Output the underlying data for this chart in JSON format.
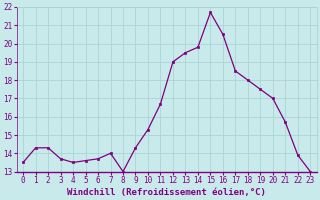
{
  "x": [
    0,
    1,
    2,
    3,
    4,
    5,
    6,
    7,
    8,
    9,
    10,
    11,
    12,
    13,
    14,
    15,
    16,
    17,
    18,
    19,
    20,
    21,
    22,
    23
  ],
  "y": [
    13.5,
    14.3,
    14.3,
    13.7,
    13.5,
    13.6,
    13.7,
    14.0,
    13.0,
    14.3,
    15.3,
    16.7,
    19.0,
    19.5,
    19.8,
    21.7,
    20.5,
    18.5,
    18.0,
    17.5,
    17.0,
    15.7,
    13.9,
    13.0
  ],
  "line_color": "#800080",
  "marker_color": "#800080",
  "bg_color": "#c8eaea",
  "grid_color": "#aad4d4",
  "ylim": [
    13,
    22
  ],
  "xlim": [
    -0.5,
    23.5
  ],
  "yticks": [
    13,
    14,
    15,
    16,
    17,
    18,
    19,
    20,
    21,
    22
  ],
  "xticks": [
    0,
    1,
    2,
    3,
    4,
    5,
    6,
    7,
    8,
    9,
    10,
    11,
    12,
    13,
    14,
    15,
    16,
    17,
    18,
    19,
    20,
    21,
    22,
    23
  ],
  "tick_color": "#800080",
  "xlabel": "Windchill (Refroidissement éolien,°C)",
  "label_fontsize": 6.5,
  "tick_fontsize": 5.5
}
